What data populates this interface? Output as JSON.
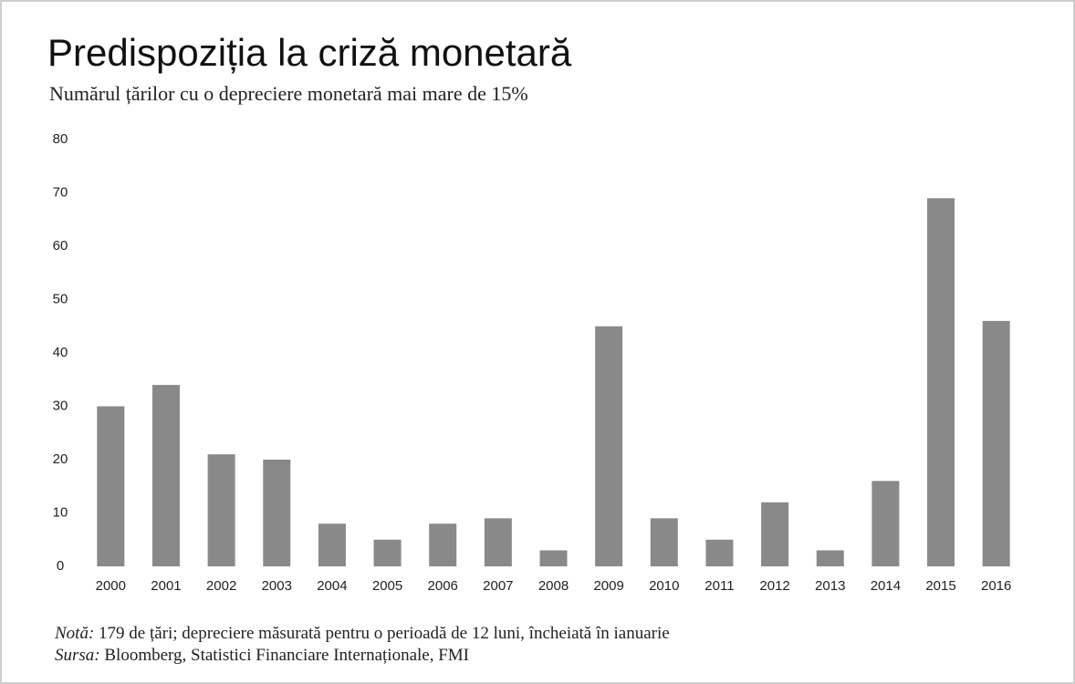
{
  "chart_data": {
    "type": "bar",
    "title": "Predispoziția la criză monetară",
    "subtitle": "Numărul țărilor cu o depreciere monetară mai mare de 15%",
    "categories": [
      "2000",
      "2001",
      "2002",
      "2003",
      "2004",
      "2005",
      "2006",
      "2007",
      "2008",
      "2009",
      "2010",
      "2011",
      "2012",
      "2013",
      "2014",
      "2015",
      "2016"
    ],
    "values": [
      30,
      34,
      21,
      20,
      8,
      5,
      8,
      9,
      3,
      45,
      9,
      5,
      12,
      3,
      16,
      69,
      46
    ],
    "color": "#898989",
    "ylim": [
      0,
      80
    ],
    "yticks": [
      0,
      10,
      20,
      30,
      40,
      50,
      60,
      70,
      80
    ],
    "grid": false,
    "note_label": "Notă:",
    "note": "179 de țări; depreciere măsurată pentru o perioadă de 12 luni, încheiată în ianuarie",
    "source_label": "Sursa:",
    "source": "Bloomberg, Statistici Financiare Internaționale, FMI"
  }
}
